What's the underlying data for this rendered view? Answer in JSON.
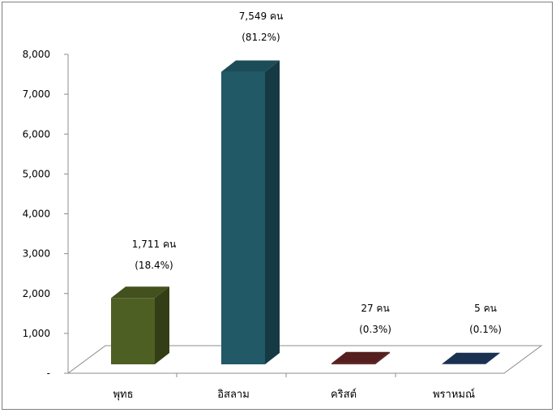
{
  "chart_data": {
    "type": "bar",
    "title": "",
    "xlabel": "",
    "ylabel": "",
    "ylim": [
      0,
      8000
    ],
    "y_ticks": [
      "-",
      "1,000",
      "2,000",
      "3,000",
      "4,000",
      "5,000",
      "6,000",
      "7,000",
      "8,000"
    ],
    "tick_values": [
      0,
      1000,
      2000,
      3000,
      4000,
      5000,
      6000,
      7000,
      8000
    ],
    "grid": false,
    "style": "3d-column",
    "categories": [
      "พุทธ",
      "อิสลาม",
      "คริสต์",
      "พราหมณ์"
    ],
    "values": [
      1711,
      7549,
      27,
      5
    ],
    "count_labels": [
      "1,711 คน",
      "7,549 คน",
      "27 คน",
      "5 คน"
    ],
    "percent_labels": [
      "(18.4%)",
      "(81.2%)",
      "(0.3%)",
      "(0.1%)"
    ],
    "colors": [
      "#4e5f23",
      "#215967",
      "#632523",
      "#1f3a5f"
    ]
  }
}
